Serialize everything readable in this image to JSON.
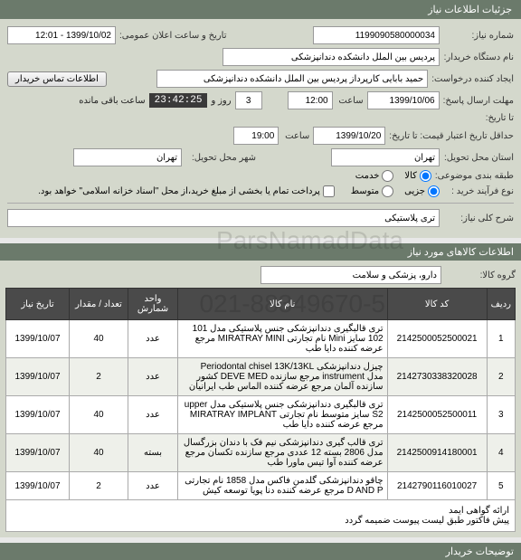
{
  "header": {
    "title": "جزئیات اطلاعات نیاز"
  },
  "form": {
    "need_number_label": "شماره نیاز:",
    "need_number": "1199090580000034",
    "announce_label": "تاریخ و ساعت اعلان عمومی:",
    "announce_value": "1399/10/02 - 12:01",
    "buyer_org_label": "نام دستگاه خریدار:",
    "buyer_org": "پردیس بین الملل دانشکده دندانپزشکی",
    "creator_label": "ایجاد کننده درخواست:",
    "creator": "حمید بابایی کارپرداز پردیس بین الملل دانشکده دندانپزشکی",
    "contact_btn": "اطلاعات تماس خریدار",
    "deadline_label": "مهلت ارسال پاسخ:",
    "deadline_date": "1399/10/06",
    "time_label": "ساعت",
    "deadline_time": "12:00",
    "days_val": "3",
    "days_label": "روز و",
    "countdown": "23:42:25",
    "remain_label": "ساعت باقی مانده",
    "until_label": "تا تاریخ:",
    "credit_label": "حداقل تاریخ اعتبار قیمت: تا تاریخ:",
    "credit_date": "1399/10/20",
    "credit_time": "19:00",
    "delivery_prov_label": "استان محل تحویل:",
    "delivery_prov": "تهران",
    "delivery_city_label": "شهر محل تحویل:",
    "delivery_city": "تهران",
    "budget_label": "طبقه بندی موضوعی:",
    "r_goods": "کالا",
    "r_service": "خدمت",
    "process_label": "نوع فرآیند خرید :",
    "r_low": "جزیی",
    "r_mid": "متوسط",
    "pay_note": "پرداخت تمام یا بخشی از مبلغ خرید،از محل \"اسناد خزانه اسلامی\" خواهد بود.",
    "desc_label": "شرح کلی نیاز:",
    "desc_value": "تری پلاستیکی"
  },
  "items_header": "اطلاعات کالاهای مورد نیاز",
  "group_label": "گروه کالا:",
  "group_value": "دارو، پزشکی و سلامت",
  "cols": {
    "row": "ردیف",
    "code": "کد کالا",
    "name": "نام کالا",
    "unit": "واحد شمارش",
    "qty": "تعداد / مقدار",
    "date": "تاریخ نیاز"
  },
  "rows": [
    {
      "n": "1",
      "code": "2142500052500021",
      "name": "تری قالبگیری دندانپزشکی جنس پلاستیکی مدل 101 102 سایز Mini نام تجارتی MIRATRAY MINI مرجع عرضه کننده دایا طب",
      "unit": "عدد",
      "qty": "40",
      "date": "1399/10/07"
    },
    {
      "n": "2",
      "code": "2142730338320028",
      "name": "چیزل دندانپزشکی Periodontal chisel 13K/13KL مدل instrument مرجع سازنده DEVE MED کشور سازنده آلمان مرجع عرضه کننده الماس طب ایرانیان",
      "unit": "عدد",
      "qty": "2",
      "date": "1399/10/07"
    },
    {
      "n": "3",
      "code": "2142500052500011",
      "name": "تری قالبگیری دندانپزشکی جنس پلاستیکی مدل upper S2 سایز متوسط نام تجارتی MIRATRAY IMPLANT مرجع عرضه کننده دایا طب",
      "unit": "عدد",
      "qty": "40",
      "date": "1399/10/07"
    },
    {
      "n": "4",
      "code": "2142500914180001",
      "name": "تری قالب گیری دندانپزشکی نیم فک با دندان بزرگسال مدل 2806 بسته 12 عددی مرجع سازنده تکسان مرجع عرضه کننده آوا تیس ماورا طب",
      "unit": "بسته",
      "qty": "40",
      "date": "1399/10/07"
    },
    {
      "n": "5",
      "code": "2142790116010027",
      "name": "چاقو دندانپزشکی گلدمن فاکس مدل 1858 نام تجارتی D AND P مرجع عرضه کننده دنا پویا توسعه کیش",
      "unit": "عدد",
      "qty": "2",
      "date": "1399/10/07"
    }
  ],
  "footer_line1": "ارائه گواهی ایمد",
  "footer_line2": "پیش فاکتور طبق لیست پیوست ضمیمه گردد",
  "explain_header": "توضیحات خریدار",
  "wm1": "ParsNamadData",
  "wm2": "021-88349670-5"
}
